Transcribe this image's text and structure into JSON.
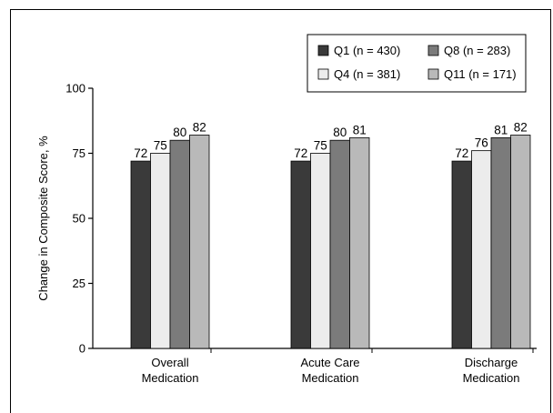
{
  "chart_data": {
    "type": "bar",
    "title": "",
    "xlabel": "",
    "ylabel": "Change in Composite Score, %",
    "ylim": [
      0,
      100
    ],
    "yticks": [
      0,
      25,
      50,
      75,
      100
    ],
    "grid": false,
    "legend_position": "top-right",
    "categories": [
      [
        "Overall",
        "Medication"
      ],
      [
        "Acute Care",
        "Medication"
      ],
      [
        "Discharge",
        "Medication"
      ]
    ],
    "series": [
      {
        "name": "Q1 (n = 430)",
        "color": "#3a3a3a",
        "values": [
          72,
          72,
          72
        ]
      },
      {
        "name": "Q4 (n = 381)",
        "color": "#ececec",
        "values": [
          75,
          75,
          76
        ]
      },
      {
        "name": "Q8 (n = 283)",
        "color": "#7b7b7b",
        "values": [
          80,
          80,
          81
        ]
      },
      {
        "name": "Q11 (n = 171)",
        "color": "#b9b9b9",
        "values": [
          82,
          81,
          82
        ]
      }
    ]
  }
}
